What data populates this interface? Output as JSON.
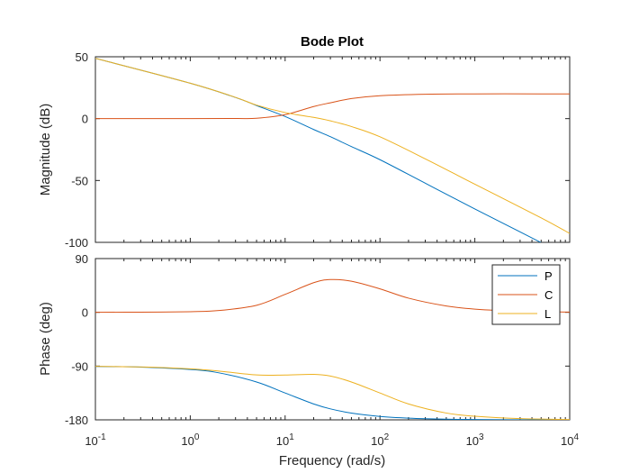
{
  "chart_data": {
    "type": "line",
    "title": "Bode Plot",
    "xlabel": "Frequency  (rad/s)",
    "x_scale": "log",
    "xlim": [
      0.1,
      10000
    ],
    "x_ticks": [
      {
        "value": 0.1,
        "base": "10",
        "exp": "-1"
      },
      {
        "value": 1,
        "base": "10",
        "exp": "0"
      },
      {
        "value": 10,
        "base": "10",
        "exp": "1"
      },
      {
        "value": 100,
        "base": "10",
        "exp": "2"
      },
      {
        "value": 1000,
        "base": "10",
        "exp": "3"
      },
      {
        "value": 10000,
        "base": "10",
        "exp": "4"
      }
    ],
    "grid": false,
    "colors": {
      "P": "#0072BD",
      "C": "#D95319",
      "L": "#EDB120"
    },
    "legend": {
      "placement": "top-right",
      "panel": "phase",
      "entries": [
        "P",
        "C",
        "L"
      ]
    },
    "panels": [
      {
        "id": "magnitude",
        "ylabel": "Magnitude (dB)",
        "ylim": [
          -100,
          50
        ],
        "yticks": [
          "50",
          "0",
          "-50",
          "-100"
        ],
        "ytick_values": [
          50,
          0,
          -50,
          -100
        ],
        "x": [
          0.1,
          1,
          3,
          5,
          10,
          20,
          30,
          50,
          100,
          300,
          1000,
          5000,
          10000
        ],
        "series": [
          {
            "name": "P",
            "values": [
              48.7,
              28.6,
              17.1,
              10.6,
              1.7,
              -8.8,
              -14.6,
              -22.6,
              -33.2,
              -52.2,
              -73.0,
              -100.2,
              -112.8
            ]
          },
          {
            "name": "C",
            "values": [
              0,
              0,
              0.1,
              0.3,
              3.2,
              9.8,
              12.8,
              16.2,
              18.5,
              19.7,
              20,
              20,
              20
            ]
          },
          {
            "name": "L",
            "values": [
              48.7,
              28.6,
              17.2,
              10.9,
              4.9,
              1.0,
              -1.8,
              -6.4,
              -14.7,
              -32.5,
              -53.0,
              -80.2,
              -92.8
            ]
          }
        ]
      },
      {
        "id": "phase",
        "ylabel": "Phase (deg)",
        "ylim": [
          -180,
          90
        ],
        "yticks": [
          "90",
          "0",
          "-90",
          "-180"
        ],
        "ytick_values": [
          90,
          0,
          -90,
          -180
        ],
        "x": [
          0.1,
          0.3,
          1,
          2,
          5,
          10,
          20,
          30,
          50,
          100,
          200,
          500,
          1000,
          3000,
          10000
        ],
        "series": [
          {
            "name": "P",
            "values": [
              -90.6,
              -91.7,
              -95.7,
              -101.3,
              -116.6,
              -135,
              -153.4,
              -161.6,
              -168.7,
              -174.3,
              -177.1,
              -178.9,
              -179.4,
              -179.8,
              -180
            ]
          },
          {
            "name": "C",
            "values": [
              0.1,
              0.3,
              1.1,
              3.0,
              11.8,
              30.1,
              49.6,
              54.9,
              52.1,
              39.3,
              23.7,
              10.6,
              5.4,
              1.8,
              0.5
            ]
          },
          {
            "name": "L",
            "values": [
              -90.5,
              -91.4,
              -94.6,
              -98.3,
              -104.8,
              -104.9,
              -103.8,
              -106.7,
              -116.6,
              -135,
              -153.4,
              -168.6,
              -174.0,
              -178.0,
              -179.5
            ]
          }
        ]
      }
    ]
  }
}
